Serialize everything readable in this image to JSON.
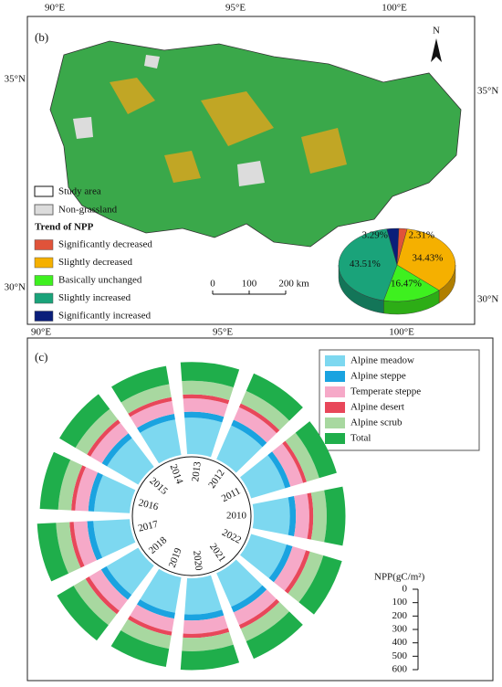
{
  "map_panel": {
    "label": "(b)",
    "north": "N",
    "top_lon": [
      "90°E",
      "95°E",
      "100°E"
    ],
    "bottom_lon": [
      "90°E",
      "95°E",
      "100°E"
    ],
    "left_lat": [
      "35°N",
      "30°N"
    ],
    "right_lat": [
      "35°N",
      "30°N"
    ],
    "study_area": "Study area",
    "non_grassland": "Non-grassland",
    "trend_title": "Trend of NPP",
    "scale_bar": [
      "0",
      "100",
      "200 km"
    ]
  },
  "chart_data": [
    {
      "type": "pie",
      "categories": [
        "Significantly decreased",
        "Slightly decreased",
        "Basically unchanged",
        "Slightly increased",
        "Significantly increased"
      ],
      "values": [
        2.31,
        34.43,
        16.47,
        43.51,
        3.29
      ],
      "value_labels": [
        "2.31%",
        "34.43%",
        "16.47%",
        "43.51%",
        "3.29%"
      ],
      "colors": [
        "#e0533a",
        "#f5b000",
        "#3ef01f",
        "#1aa37a",
        "#0a1e7a"
      ]
    },
    {
      "type": "radial_bar",
      "label": "(c)",
      "categories": [
        "2010",
        "2011",
        "2012",
        "2013",
        "2014",
        "2015",
        "2016",
        "2017",
        "2018",
        "2019",
        "2020",
        "2021",
        "2022"
      ],
      "series": [
        {
          "name": "Alpine meadow",
          "color": "#7dd8f0",
          "values": [
            270,
            265,
            275,
            272,
            268,
            270,
            266,
            272,
            275,
            268,
            270,
            274,
            276
          ]
        },
        {
          "name": "Alpine steppe",
          "color": "#1aa3e0",
          "values": [
            45,
            42,
            46,
            44,
            43,
            45,
            44,
            46,
            47,
            44,
            45,
            46,
            47
          ]
        },
        {
          "name": "Temperate steppe",
          "color": "#f6a9c8",
          "values": [
            100,
            98,
            102,
            100,
            97,
            99,
            98,
            101,
            103,
            99,
            100,
            102,
            104
          ]
        },
        {
          "name": "Alpine desert",
          "color": "#e8475a",
          "values": [
            30,
            28,
            31,
            30,
            29,
            30,
            29,
            31,
            32,
            30,
            30,
            31,
            32
          ]
        },
        {
          "name": "Alpine scrub",
          "color": "#a8d8a0",
          "values": [
            100,
            98,
            102,
            101,
            99,
            100,
            98,
            101,
            103,
            99,
            100,
            102,
            104
          ]
        },
        {
          "name": "Total",
          "color": "#1fae4b",
          "values": [
            140,
            136,
            142,
            140,
            137,
            139,
            137,
            141,
            144,
            138,
            140,
            142,
            145
          ]
        }
      ],
      "axis_label": "NPP(gC/m²)",
      "rlim": [
        0,
        600
      ],
      "rticks": [
        0,
        100,
        200,
        300,
        400,
        500,
        600
      ]
    }
  ]
}
